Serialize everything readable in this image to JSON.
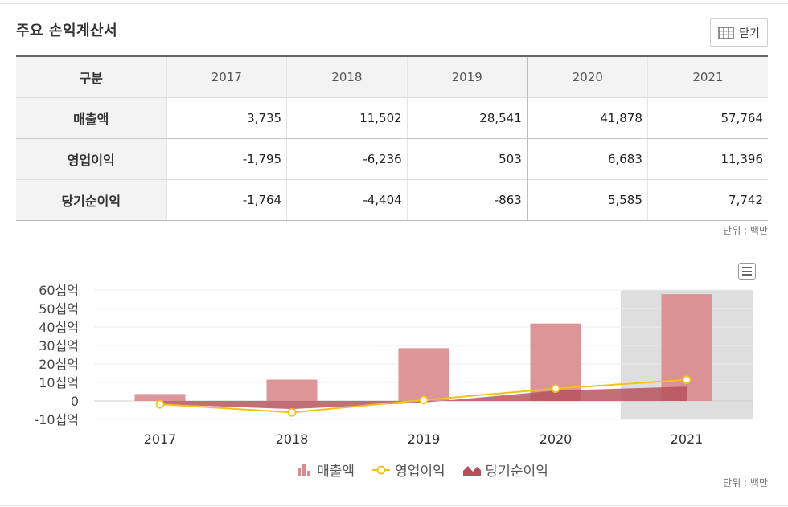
{
  "header": {
    "title": "주요 손익계산서",
    "close_label": "닫기"
  },
  "table": {
    "row_header": "구분",
    "years": [
      "2017",
      "2018",
      "2019",
      "2020",
      "2021"
    ],
    "rows": [
      {
        "label": "매출액",
        "values": [
          "3,735",
          "11,502",
          "28,541",
          "41,878",
          "57,764"
        ]
      },
      {
        "label": "영업이익",
        "values": [
          "-1,795",
          "-6,236",
          "503",
          "6,683",
          "11,396"
        ]
      },
      {
        "label": "당기순이익",
        "values": [
          "-1,764",
          "-4,404",
          "-863",
          "5,585",
          "7,742"
        ]
      }
    ],
    "unit": "단위 : 백만"
  },
  "chart_data": {
    "type": "bar",
    "categories": [
      "2017",
      "2018",
      "2019",
      "2020",
      "2021"
    ],
    "series": [
      {
        "name": "매출액",
        "type": "bar",
        "color": "#d98a8c",
        "values": [
          3735,
          11502,
          28541,
          41878,
          57764
        ]
      },
      {
        "name": "영업이익",
        "type": "line",
        "color": "#f2c21a",
        "values": [
          -1795,
          -6236,
          503,
          6683,
          11396
        ]
      },
      {
        "name": "당기순이익",
        "type": "area",
        "color": "#b5505a",
        "values": [
          -1764,
          -4404,
          -863,
          5585,
          7742
        ]
      }
    ],
    "y_ticks": [
      {
        "value": 60000,
        "label": "60십억"
      },
      {
        "value": 50000,
        "label": "50십억"
      },
      {
        "value": 40000,
        "label": "40십억"
      },
      {
        "value": 30000,
        "label": "30십억"
      },
      {
        "value": 20000,
        "label": "20십억"
      },
      {
        "value": 10000,
        "label": "10십억"
      },
      {
        "value": 0,
        "label": "0"
      },
      {
        "value": -10000,
        "label": "-10십억"
      }
    ],
    "ylim": [
      -10000,
      60000
    ],
    "highlighted_category": "2021",
    "grid": true,
    "legend_position": "bottom",
    "unit": "단위 : 백만"
  }
}
